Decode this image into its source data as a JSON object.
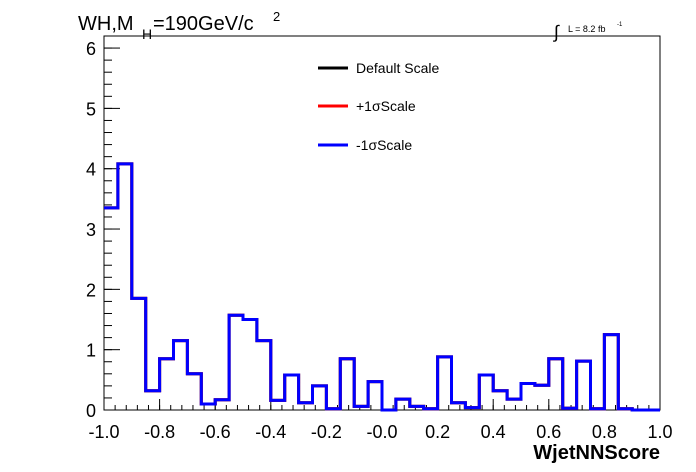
{
  "chart_data": {
    "type": "line",
    "title_main": "WH,M",
    "title_sub": "H",
    "title_rest": "=190GeV/c",
    "title_sup": "2",
    "lumi_label": "L = 8.2 fb",
    "lumi_sup": "-1",
    "xlabel": "WjetNNScore",
    "ylabel": "",
    "xlim": [
      -1.0,
      1.0
    ],
    "ylim": [
      0,
      6.2
    ],
    "x_ticks": [
      -1.0,
      -0.8,
      -0.6,
      -0.4,
      -0.2,
      0.0,
      0.2,
      0.4,
      0.6,
      0.8,
      1.0
    ],
    "x_tick_labels": [
      "-1.0",
      "-0.8",
      "-0.6",
      "-0.4",
      "-0.2",
      "-0.0",
      "0.2",
      "0.4",
      "0.6",
      "0.8",
      "1.0"
    ],
    "y_ticks": [
      0,
      1,
      2,
      3,
      4,
      5,
      6
    ],
    "y_tick_labels": [
      "0",
      "1",
      "2",
      "3",
      "4",
      "5",
      "6"
    ],
    "bin_edges": [
      -1.0,
      -0.95,
      -0.9,
      -0.85,
      -0.8,
      -0.75,
      -0.7,
      -0.65,
      -0.6,
      -0.55,
      -0.5,
      -0.45,
      -0.4,
      -0.35,
      -0.3,
      -0.25,
      -0.2,
      -0.15,
      -0.1,
      -0.05,
      0.0,
      0.05,
      0.1,
      0.15,
      0.2,
      0.25,
      0.3,
      0.35,
      0.4,
      0.45,
      0.5,
      0.55,
      0.6,
      0.65,
      0.7,
      0.75,
      0.8,
      0.85,
      0.9,
      0.95,
      1.0
    ],
    "series": [
      {
        "name": "Default Scale",
        "color": "#000000",
        "values": [
          3.35,
          4.08,
          1.85,
          0.32,
          0.85,
          1.15,
          0.6,
          0.1,
          0.17,
          1.57,
          1.5,
          1.15,
          0.16,
          0.58,
          0.12,
          0.4,
          0.02,
          0.85,
          0.06,
          0.47,
          0.0,
          0.18,
          0.06,
          0.02,
          0.88,
          0.12,
          0.04,
          0.58,
          0.32,
          0.18,
          0.44,
          0.41,
          0.85,
          0.03,
          0.81,
          0.02,
          1.25,
          0.02,
          0.0,
          0.0
        ]
      },
      {
        "name": "+1σScale",
        "color": "#ff0000",
        "values": [
          3.35,
          4.08,
          1.85,
          0.32,
          0.85,
          1.15,
          0.6,
          0.1,
          0.17,
          1.57,
          1.5,
          1.15,
          0.16,
          0.58,
          0.12,
          0.4,
          0.02,
          0.85,
          0.06,
          0.47,
          0.0,
          0.18,
          0.06,
          0.02,
          0.88,
          0.12,
          0.04,
          0.58,
          0.32,
          0.18,
          0.44,
          0.41,
          0.85,
          0.03,
          0.81,
          0.02,
          1.25,
          0.02,
          0.0,
          0.0
        ]
      },
      {
        "name": "-1σScale",
        "color": "#0000ff",
        "values": [
          3.35,
          4.08,
          1.85,
          0.32,
          0.85,
          1.15,
          0.6,
          0.1,
          0.17,
          1.57,
          1.5,
          1.15,
          0.16,
          0.58,
          0.12,
          0.4,
          0.02,
          0.85,
          0.06,
          0.47,
          0.0,
          0.18,
          0.06,
          0.02,
          0.88,
          0.12,
          0.04,
          0.58,
          0.32,
          0.18,
          0.44,
          0.41,
          0.85,
          0.03,
          0.81,
          0.02,
          1.25,
          0.02,
          0.0,
          0.0
        ]
      }
    ],
    "legend_position": "top-right",
    "grid": false
  }
}
